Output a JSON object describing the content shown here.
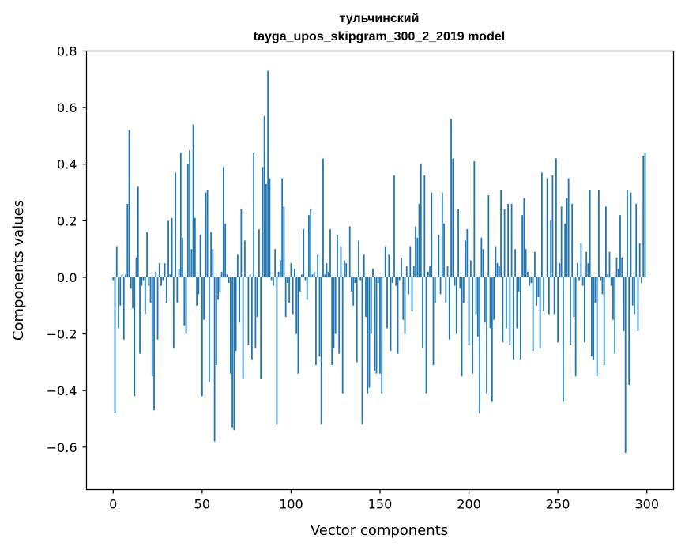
{
  "chart_data": {
    "type": "bar",
    "title": "тульчинский",
    "subtitle": "tayga_upos_skipgram_300_2_2019 model",
    "xlabel": "Vector components",
    "ylabel": "Components values",
    "xlim": [
      -15,
      315
    ],
    "ylim": [
      -0.75,
      0.8
    ],
    "xticks": [
      0,
      50,
      100,
      150,
      200,
      250,
      300
    ],
    "xtick_labels": [
      "0",
      "50",
      "100",
      "150",
      "200",
      "250",
      "300"
    ],
    "yticks": [
      -0.6,
      -0.4,
      -0.2,
      0.0,
      0.2,
      0.4,
      0.6,
      0.8
    ],
    "ytick_labels": [
      "−0.6",
      "−0.4",
      "−0.2",
      "0.0",
      "0.2",
      "0.4",
      "0.6",
      "0.8"
    ],
    "grid": false,
    "bar_color": "#1f77b4",
    "x": "integers 0 to 299",
    "values": [
      -0.01,
      -0.48,
      0.11,
      -0.18,
      -0.1,
      0.01,
      -0.22,
      0.01,
      0.26,
      0.52,
      -0.04,
      -0.11,
      -0.42,
      0.07,
      0.32,
      -0.27,
      -0.03,
      -0.01,
      -0.13,
      0.16,
      -0.03,
      -0.09,
      -0.35,
      -0.47,
      0.02,
      -0.22,
      0.05,
      -0.03,
      -0.01,
      0.05,
      -0.09,
      0.2,
      0.01,
      0.21,
      -0.25,
      0.37,
      -0.09,
      0.03,
      0.44,
      0.14,
      -0.17,
      -0.2,
      0.4,
      0.45,
      0.1,
      0.54,
      0.21,
      -0.1,
      -0.06,
      0.15,
      -0.42,
      -0.15,
      0.3,
      0.31,
      -0.37,
      0.16,
      0.1,
      -0.58,
      -0.31,
      -0.08,
      -0.05,
      0.02,
      0.39,
      0.19,
      0.01,
      -0.02,
      -0.34,
      -0.53,
      -0.54,
      -0.26,
      0.08,
      -0.16,
      0.24,
      -0.36,
      0.13,
      0.0,
      -0.24,
      0.01,
      -0.29,
      0.44,
      -0.25,
      -0.14,
      0.17,
      -0.36,
      0.39,
      0.57,
      0.33,
      0.73,
      0.35,
      -0.01,
      -0.03,
      0.1,
      -0.52,
      0.02,
      0.06,
      0.35,
      0.25,
      -0.14,
      -0.02,
      -0.09,
      0.05,
      -0.13,
      0.03,
      -0.2,
      -0.34,
      -0.05,
      0.01,
      0.17,
      -0.01,
      -0.08,
      0.22,
      0.24,
      0.01,
      0.02,
      -0.31,
      0.08,
      -0.28,
      -0.52,
      0.42,
      0.01,
      0.05,
      0.02,
      0.17,
      -0.31,
      -0.25,
      -0.2,
      0.15,
      -0.27,
      0.11,
      -0.41,
      0.06,
      0.05,
      0.0,
      0.18,
      -0.05,
      -0.1,
      -0.02,
      -0.3,
      0.13,
      -0.01,
      -0.52,
      0.08,
      -0.14,
      -0.41,
      -0.39,
      -0.2,
      0.03,
      -0.33,
      -0.34,
      -0.02,
      -0.34,
      -0.41,
      0.0,
      0.11,
      -0.18,
      0.08,
      -0.26,
      -0.02,
      0.36,
      -0.03,
      -0.27,
      -0.01,
      0.07,
      -0.15,
      -0.2,
      0.04,
      -0.06,
      0.11,
      -0.12,
      0.04,
      0.18,
      0.14,
      0.26,
      0.4,
      -0.25,
      0.36,
      -0.41,
      0.02,
      0.04,
      0.3,
      -0.31,
      -0.09,
      0.0,
      0.15,
      -0.06,
      0.3,
      0.19,
      -0.09,
      0.04,
      -0.22,
      0.56,
      0.42,
      -0.03,
      -0.2,
      0.24,
      -0.04,
      -0.35,
      -0.09,
      0.13,
      0.17,
      -0.24,
      0.06,
      -0.34,
      0.41,
      -0.13,
      -0.21,
      -0.48,
      0.14,
      0.1,
      -0.16,
      -0.41,
      0.29,
      -0.18,
      -0.44,
      -0.15,
      0.11,
      0.05,
      0.04,
      0.31,
      -0.23,
      0.24,
      -0.18,
      0.26,
      -0.24,
      0.26,
      -0.29,
      0.1,
      -0.18,
      -0.05,
      -0.29,
      0.22,
      0.28,
      0.1,
      0.02,
      -0.03,
      -0.02,
      -0.26,
      0.09,
      -0.1,
      -0.07,
      -0.25,
      0.37,
      -0.12,
      0.0,
      0.35,
      -0.13,
      0.2,
      0.36,
      -0.13,
      0.42,
      -0.23,
      0.05,
      0.25,
      -0.44,
      0.19,
      0.28,
      0.35,
      -0.24,
      0.26,
      -0.14,
      -0.35,
      0.05,
      -0.01,
      0.12,
      -0.03,
      -0.23,
      0.09,
      0.05,
      0.31,
      -0.28,
      -0.29,
      -0.09,
      -0.35,
      0.31,
      -0.01,
      -0.06,
      -0.31,
      0.25,
      0.01,
      0.09,
      -0.03,
      -0.15,
      -0.27,
      0.07,
      0.03,
      0.22,
      0.07,
      -0.19,
      -0.62,
      0.31,
      -0.38,
      0.3,
      -0.1,
      -0.13,
      0.26,
      -0.19,
      0.12,
      -0.02,
      0.43,
      0.44
    ]
  }
}
